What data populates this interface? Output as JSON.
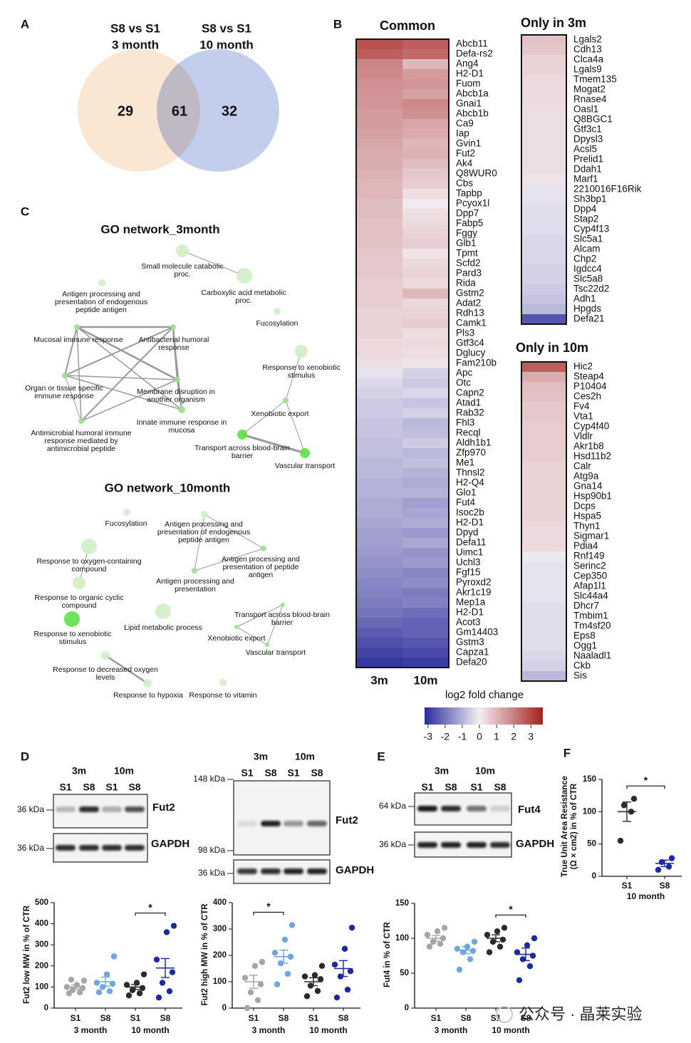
{
  "panel_labels": [
    "A",
    "B",
    "C",
    "D",
    "E",
    "F"
  ],
  "venn": {
    "sets": [
      {
        "title": [
          "S8 vs S1",
          "3 month"
        ],
        "color": "#e6b587",
        "fill": "#f9e7d4"
      },
      {
        "title": [
          "S8 vs S1",
          "10 month"
        ],
        "color": "#7b3ea3",
        "fill": "#c3cdec"
      }
    ],
    "counts": [
      29,
      61,
      32
    ],
    "count_colors": [
      "#e3ad7c",
      "#222222",
      "#7844a6"
    ]
  },
  "heatmap_scale": {
    "label": "log2 fold change",
    "clim": [
      -3.2,
      3.7
    ],
    "ticks": [
      -3,
      -2,
      -1,
      0,
      1,
      2,
      3
    ],
    "colors": [
      "#2a2b9b",
      "#f3eff4",
      "#a6201c"
    ]
  },
  "go_networks": [
    {
      "title": "GO network_3month",
      "nodes": [
        {
          "label": [
            "Small molecule catabolic",
            "proc."
          ]
        },
        {
          "label": [
            "Carboxylic acid metabolic",
            "proc."
          ]
        },
        {
          "label": [
            "Antigen processing and",
            "presentation of endogenous",
            "peptide antigen"
          ]
        },
        {
          "label": [
            "Fucosylation"
          ]
        },
        {
          "label": [
            "Mucosal immune response"
          ]
        },
        {
          "label": [
            "Antibacterial humoral",
            "response"
          ]
        },
        {
          "label": [
            "Response to xenobiotic",
            "stimulus"
          ]
        },
        {
          "label": [
            "Organ or tissue specific",
            "immune response"
          ]
        },
        {
          "label": [
            "Membrane disruption in",
            "another organism"
          ]
        },
        {
          "label": [
            "Xenobiotic export"
          ]
        },
        {
          "label": [
            "Innate immune response in",
            "mucosa"
          ]
        },
        {
          "label": [
            "Antimicrobial humoral immune",
            "response mediated by",
            "antimicrobial peptide"
          ]
        },
        {
          "label": [
            "Transport across blood-brain",
            "barrier"
          ]
        },
        {
          "label": [
            "Vascular transport"
          ]
        }
      ]
    },
    {
      "title": "GO network_10month",
      "nodes": [
        {
          "label": [
            "Fucosylation"
          ]
        },
        {
          "label": [
            "Antigen processing and",
            "presentation of endogenous",
            "peptide antigen"
          ]
        },
        {
          "label": [
            "Response to oxygen-containing",
            "compound"
          ]
        },
        {
          "label": [
            "Antigen processing and",
            "presentation of peptide",
            "antigen"
          ]
        },
        {
          "label": [
            "Antigen processing and",
            "presentation"
          ]
        },
        {
          "label": [
            "Response to organic cyclic",
            "compound"
          ]
        },
        {
          "label": [
            "Lipid metabolic process"
          ]
        },
        {
          "label": [
            "Transport across blood-brain",
            "barrier"
          ]
        },
        {
          "label": [
            "Response to xenobiotic",
            "stimulus"
          ]
        },
        {
          "label": [
            "Xenobiotic export"
          ]
        },
        {
          "label": [
            "Vascular transport"
          ]
        },
        {
          "label": [
            "Response to decreased oxygen",
            "levels"
          ]
        },
        {
          "label": [
            "Response to hypoxia"
          ]
        },
        {
          "label": [
            "Response to vitamin"
          ]
        }
      ]
    }
  ],
  "blots": [
    {
      "timepoints": [
        "3m",
        "10m"
      ],
      "lanes": [
        "S1",
        "S8",
        "S1",
        "S8"
      ],
      "target": "Fut2",
      "control": "GAPDH",
      "target_markers": [
        "36 kDa"
      ],
      "control_markers": [
        "36 kDa"
      ]
    },
    {
      "timepoints": [
        "3m",
        "10m"
      ],
      "lanes": [
        "S1",
        "S8",
        "S1",
        "S8"
      ],
      "target": "Fut2",
      "control": "GAPDH",
      "target_markers": [
        "148 kDa",
        "98 kDa"
      ],
      "control_markers": [
        "36 kDa"
      ]
    },
    {
      "timepoints": [
        "3m",
        "10m"
      ],
      "lanes": [
        "S1",
        "S8",
        "S1",
        "S8"
      ],
      "target": "Fut4",
      "control": "GAPDH",
      "target_markers": [
        "64 kDa"
      ],
      "control_markers": [
        "36 kDa"
      ]
    }
  ],
  "chart_data": [
    {
      "type": "heatmap",
      "title": "Common",
      "rows": [
        "Abcb11",
        "Defa-rs2",
        "Ang4",
        "H2-D1",
        "Fuom",
        "Abcb1a",
        "Gnai1",
        "Abcb1b",
        "Ca9",
        "Iap",
        "Gvin1",
        "Fut2",
        "Ak4",
        "Q8WUR0",
        "Cbs",
        "Tapbp",
        "Pcyox1l",
        "Dpp7",
        "Fabp5",
        "Fggy",
        "Glb1",
        "Tpmt",
        "Scfd2",
        "Pard3",
        "Rida",
        "Gstm2",
        "Adat2",
        "Rdh13",
        "Camk1",
        "Pls3",
        "Gtf3c4",
        "Dglucy",
        "Fam210b",
        "Apc",
        "Otc",
        "Capn2",
        "Atad1",
        "Rab32",
        "Fhl3",
        "Recql",
        "Aldh1b1",
        "Zfp970",
        "Me1",
        "Thnsl2",
        "H2-Q4",
        "Glo1",
        "Fut4",
        "Isoc2b",
        "H2-D1",
        "Dpyd",
        "Defa11",
        "Uimc1",
        "Uchl3",
        "Fgf15",
        "Pyroxd2",
        "Akr1c19",
        "Mep1a",
        "H2-D1",
        "Acot3",
        "Gm14403",
        "Gstm3",
        "Capza1",
        "Defa20"
      ],
      "series": [
        {
          "name": "3m",
          "values": [
            2.8,
            2.6,
            1.9,
            1.8,
            1.7,
            1.6,
            1.6,
            1.5,
            1.5,
            1.4,
            1.3,
            1.2,
            1.2,
            1.1,
            1.0,
            1.0,
            0.9,
            0.9,
            0.8,
            0.8,
            0.8,
            0.7,
            0.7,
            0.7,
            0.6,
            0.6,
            0.6,
            0.5,
            0.5,
            0.5,
            0.4,
            0.4,
            0.3,
            -0.2,
            -0.4,
            -0.5,
            -0.6,
            -0.6,
            -0.7,
            -0.7,
            -0.8,
            -0.8,
            -0.9,
            -0.9,
            -1.0,
            -1.0,
            -1.1,
            -1.1,
            -1.2,
            -1.3,
            -1.3,
            -1.4,
            -1.5,
            -1.6,
            -1.7,
            -1.8,
            -1.9,
            -2.0,
            -2.2,
            -2.4,
            -2.6,
            -2.8,
            -3.0
          ]
        },
        {
          "name": "10m",
          "values": [
            2.6,
            2.4,
            1.0,
            1.5,
            1.6,
            1.4,
            1.8,
            1.7,
            1.3,
            1.2,
            1.0,
            1.1,
            0.9,
            0.7,
            0.6,
            0.3,
            0.1,
            0.3,
            0.4,
            0.5,
            0.6,
            0.2,
            0.4,
            0.5,
            0.4,
            1.0,
            0.4,
            0.5,
            0.6,
            0.3,
            0.4,
            0.3,
            0.2,
            -0.5,
            -0.6,
            -0.4,
            -0.7,
            -0.5,
            -0.9,
            -0.8,
            -0.6,
            -0.9,
            -0.8,
            -1.0,
            -1.1,
            -1.0,
            -1.3,
            -1.2,
            -1.1,
            -1.4,
            -1.2,
            -1.5,
            -1.4,
            -1.7,
            -1.6,
            -1.9,
            -1.8,
            -2.1,
            -2.3,
            -2.3,
            -2.5,
            -2.7,
            -2.9
          ]
        }
      ]
    },
    {
      "type": "heatmap",
      "title": "Only in 3m",
      "title_color": "#e3944a",
      "rows": [
        "Lgals2",
        "Cdh13",
        "Clca4a",
        "Lgals9",
        "Tmem135",
        "Mogat2",
        "Rnase4",
        "Oasl1",
        "Q8BGC1",
        "Gtf3c1",
        "Dpysl3",
        "Acsl5",
        "Prelid1",
        "Ddah1",
        "Marf1",
        "2210016F16Rik",
        "Sh3bp1",
        "Dpp4",
        "Stap2",
        "Cyp4f13",
        "Slc5a1",
        "Alcam",
        "Chp2",
        "Igdcc4",
        "Slc5a8",
        "Tsc22d2",
        "Adh1",
        "Hpgds",
        "Defa21"
      ],
      "values": [
        0.8,
        0.7,
        0.5,
        0.5,
        0.4,
        0.4,
        0.4,
        0.3,
        0.3,
        0.3,
        0.3,
        0.3,
        0.3,
        0.3,
        0.2,
        -0.2,
        -0.2,
        -0.3,
        -0.3,
        -0.3,
        -0.4,
        -0.4,
        -0.4,
        -0.5,
        -0.5,
        -0.6,
        -0.7,
        -0.9,
        -2.5
      ]
    },
    {
      "type": "heatmap",
      "title": "Only in 10m",
      "title_color": "#7436a3",
      "rows": [
        "Hic2",
        "Steap4",
        "P10404",
        "Ces2h",
        "Fv4",
        "Vta1",
        "Cyp4f40",
        "Vldlr",
        "Akr1b8",
        "Hsd11b2",
        "Calr",
        "Atg9a",
        "Gna14",
        "Hsp90b1",
        "Dcps",
        "Hspa5",
        "Thyn1",
        "Sigmar1",
        "Pdia4",
        "Rnf149",
        "Serinc2",
        "Cep350",
        "Afap1l1",
        "Slc44a4",
        "Dhcr7",
        "Tmbim1",
        "Tm4sf20",
        "Eps8",
        "Ogg1",
        "Naaladl1",
        "Ckb",
        "Sis"
      ],
      "values": [
        2.6,
        1.2,
        0.9,
        0.8,
        0.7,
        0.7,
        0.6,
        0.6,
        0.6,
        0.6,
        0.5,
        0.5,
        0.5,
        0.5,
        0.5,
        0.5,
        0.4,
        0.4,
        0.4,
        -0.1,
        -0.2,
        -0.2,
        -0.2,
        -0.2,
        -0.3,
        -0.3,
        -0.3,
        -0.3,
        -0.3,
        -0.4,
        -0.5,
        -0.9
      ]
    },
    {
      "type": "dotplot",
      "ylabel": "Fut2 low MW in % of CTR",
      "ylim": [
        0,
        500
      ],
      "yticks": [
        0,
        100,
        200,
        300,
        400,
        500
      ],
      "categories": [
        "S1",
        "S8",
        "S1",
        "S8"
      ],
      "groups": [
        "3 month",
        "10 month"
      ],
      "colors": [
        "#a6a6a6",
        "#6fa6e0",
        "#2b2b2b",
        "#1c2aa0"
      ],
      "points": [
        [
          70,
          75,
          85,
          95,
          100,
          110,
          130,
          135
        ],
        [
          75,
          80,
          100,
          115,
          120,
          160,
          245
        ],
        [
          60,
          70,
          85,
          95,
          110,
          120,
          160
        ],
        [
          50,
          80,
          120,
          170,
          230,
          360,
          390
        ]
      ],
      "means": [
        100,
        125,
        100,
        190
      ],
      "sems": [
        10,
        22,
        12,
        45
      ],
      "significance": [
        {
          "label": "*",
          "pair": [
            2,
            3
          ]
        }
      ]
    },
    {
      "type": "dotplot",
      "ylabel": "Fut2 high MW in % of CTR",
      "ylim": [
        0,
        400
      ],
      "yticks": [
        0,
        100,
        200,
        300,
        400
      ],
      "categories": [
        "S1",
        "S8",
        "S1",
        "S8"
      ],
      "groups": [
        "3 month",
        "10 month"
      ],
      "colors": [
        "#a6a6a6",
        "#6fa6e0",
        "#2b2b2b",
        "#1c2aa0"
      ],
      "points": [
        [
          0,
          30,
          60,
          90,
          115,
          160,
          175
        ],
        [
          90,
          130,
          170,
          195,
          210,
          260,
          315
        ],
        [
          45,
          65,
          85,
          110,
          120,
          125,
          160
        ],
        [
          40,
          70,
          120,
          140,
          165,
          225,
          305
        ]
      ],
      "means": [
        100,
        195,
        100,
        150
      ],
      "sems": [
        25,
        25,
        15,
        30
      ],
      "significance": [
        {
          "label": "*",
          "pair": [
            0,
            1
          ]
        }
      ]
    },
    {
      "type": "dotplot",
      "ylabel": "Fut4 in % of CTR",
      "ylim": [
        0,
        150
      ],
      "yticks": [
        0,
        50,
        100,
        150
      ],
      "categories": [
        "S1",
        "S8",
        "S1",
        "S8"
      ],
      "groups": [
        "3 month",
        "10 month"
      ],
      "colors": [
        "#a6a6a6",
        "#6fa6e0",
        "#2b2b2b",
        "#1c2aa0"
      ],
      "points": [
        [
          88,
          92,
          95,
          100,
          105,
          110,
          115
        ],
        [
          55,
          70,
          80,
          82,
          85,
          88,
          95
        ],
        [
          80,
          88,
          95,
          98,
          105,
          110,
          115
        ],
        [
          40,
          60,
          70,
          75,
          80,
          90,
          100
        ]
      ],
      "means": [
        100,
        83,
        100,
        77
      ],
      "sems": [
        4,
        5,
        5,
        9
      ],
      "significance": [
        {
          "label": "*",
          "pair": [
            2,
            3
          ]
        }
      ]
    },
    {
      "type": "dotplot",
      "ylabel": [
        "True Unit Area Resistance",
        "(Ω × cm2) in % of CTR"
      ],
      "ylim": [
        0,
        150
      ],
      "yticks": [
        0,
        50,
        100,
        150
      ],
      "categories": [
        "S1",
        "S8"
      ],
      "groups": [
        "10 month"
      ],
      "colors": [
        "#2b2b2b",
        "#1c2aa0"
      ],
      "points": [
        [
          55,
          100,
          110,
          120
        ],
        [
          10,
          15,
          22,
          28
        ]
      ],
      "means": [
        100,
        20
      ],
      "sems": [
        15,
        5
      ],
      "significance": [
        {
          "label": "*",
          "pair": [
            0,
            1
          ]
        }
      ]
    }
  ],
  "watermark": "公众号 · 晶莱实验"
}
